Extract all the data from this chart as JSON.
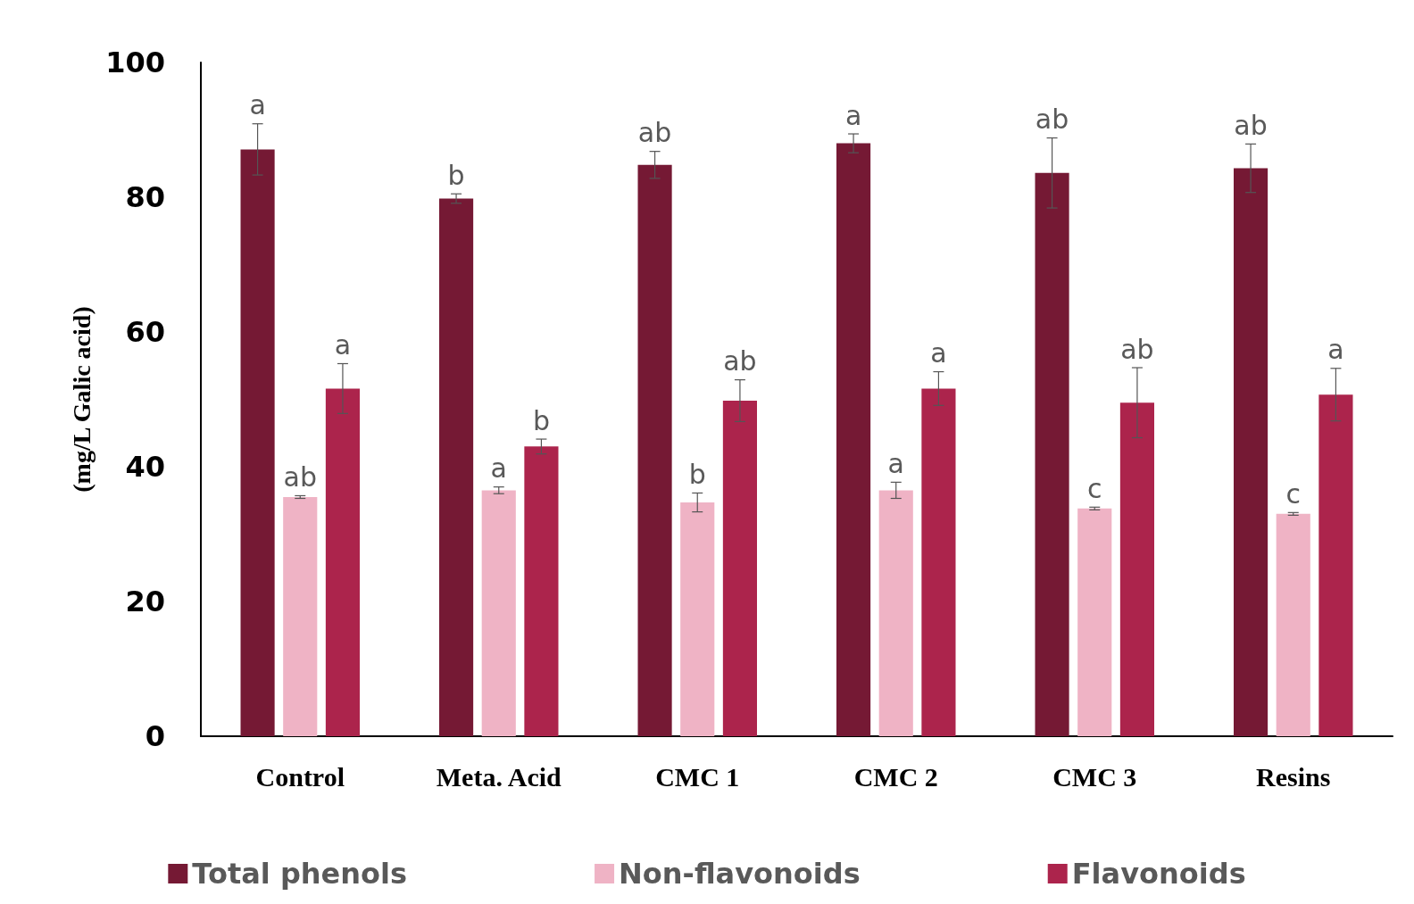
{
  "chart_data": {
    "type": "bar",
    "ylabel": "(mg/L Galic acid)",
    "categories": [
      "Control",
      "Meta. Acid",
      "CMC 1",
      "CMC 2",
      "CMC 3",
      "Resins"
    ],
    "series": [
      {
        "name": "Total phenols",
        "color": "#751934",
        "values": [
          87.1,
          79.8,
          84.8,
          88.0,
          83.6,
          84.3
        ],
        "errors": [
          3.8,
          0.7,
          2.0,
          1.4,
          5.2,
          3.6
        ],
        "value_labels": [
          "a",
          "b",
          "ab",
          "a",
          "ab",
          "ab"
        ]
      },
      {
        "name": "Non-flavonoids",
        "color": "#efb3c5",
        "values": [
          35.5,
          36.5,
          34.7,
          36.5,
          33.8,
          33.0
        ],
        "errors": [
          0.2,
          0.5,
          1.4,
          1.2,
          0.2,
          0.2
        ],
        "value_labels": [
          "ab",
          "a",
          "b",
          "a",
          "c",
          "c"
        ]
      },
      {
        "name": "Flavonoids",
        "color": "#ac244c",
        "values": [
          51.6,
          43.0,
          49.8,
          51.6,
          49.5,
          50.7
        ],
        "errors": [
          3.7,
          1.1,
          3.1,
          2.5,
          5.2,
          3.9
        ],
        "value_labels": [
          "a",
          "b",
          "ab",
          "a",
          "ab",
          "a"
        ]
      }
    ],
    "ylim": [
      0,
      100
    ],
    "yticks": [
      0,
      20,
      40,
      60,
      80,
      100
    ],
    "grid": false,
    "legend": "bottom"
  }
}
